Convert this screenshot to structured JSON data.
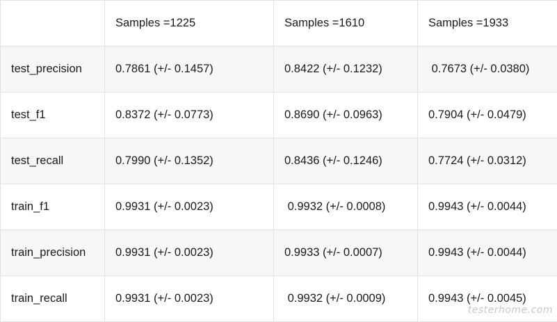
{
  "table": {
    "columns": [
      "",
      "Samples =1225",
      "Samples =1610",
      "Samples =1933"
    ],
    "rows": [
      {
        "metric": "test_precision",
        "values": [
          "0.7861 (+/- 0.1457)",
          "0.8422 (+/- 0.1232)",
          " 0.7673 (+/- 0.0380)"
        ]
      },
      {
        "metric": "test_f1",
        "values": [
          "0.8372 (+/- 0.0773)",
          "0.8690 (+/- 0.0963)",
          "0.7904 (+/- 0.0479)"
        ]
      },
      {
        "metric": "test_recall",
        "values": [
          "0.7990 (+/- 0.1352)",
          "0.8436 (+/- 0.1246)",
          "0.7724 (+/- 0.0312)"
        ]
      },
      {
        "metric": "train_f1",
        "values": [
          "0.9931 (+/- 0.0023)",
          " 0.9932 (+/- 0.0008)",
          "0.9943 (+/- 0.0044)"
        ]
      },
      {
        "metric": "train_precision",
        "values": [
          "0.9931 (+/- 0.0023)",
          "0.9933 (+/- 0.0007)",
          "0.9943 (+/- 0.0044)"
        ]
      },
      {
        "metric": "train_recall",
        "values": [
          "0.9931 (+/- 0.0023)",
          " 0.9932 (+/- 0.0009)",
          "0.9943 (+/- 0.0045)"
        ]
      }
    ]
  },
  "watermark": "testerhome.com"
}
